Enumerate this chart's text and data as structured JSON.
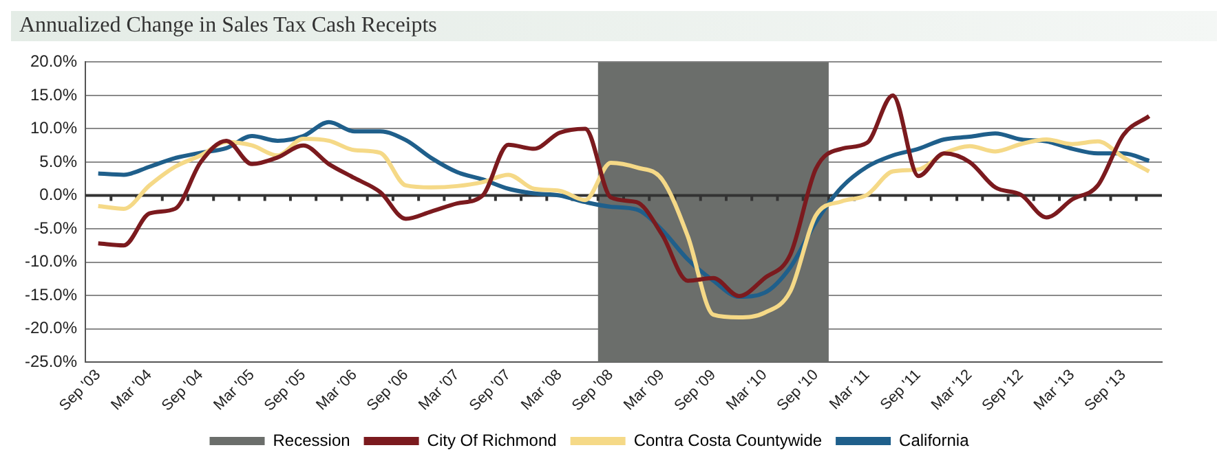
{
  "chart_data": {
    "type": "line",
    "title": "Annualized Change in Sales Tax Cash Receipts",
    "categories": [
      "Sep '03",
      null,
      "Mar '04",
      null,
      "Sep '04",
      null,
      "Mar '05",
      null,
      "Sep '05",
      null,
      "Mar '06",
      null,
      "Sep '06",
      null,
      "Mar '07",
      null,
      "Sep '07",
      null,
      "Mar '08",
      null,
      "Sep '08",
      null,
      "Mar '09",
      null,
      "Sep '09",
      null,
      "Mar '10",
      null,
      "Sep '10",
      null,
      "Mar '11",
      null,
      "Sep '11",
      null,
      "Mar '12",
      null,
      "Sep '12",
      null,
      "Mar '13",
      null,
      "Sep '13",
      null
    ],
    "series": [
      {
        "name": "City Of Richmond",
        "color": "#7b1a1e",
        "values": [
          -7.2,
          -7.5,
          -2.7,
          -2.0,
          5.0,
          8.2,
          4.7,
          5.7,
          7.5,
          4.7,
          2.6,
          0.5,
          -3.5,
          -2.4,
          -1.2,
          0.0,
          7.6,
          7.0,
          9.4,
          10.0,
          -0.3,
          -1.0,
          -5.9,
          -12.8,
          -12.4,
          -15.1,
          -12.4,
          -8.9,
          4.0,
          7.0,
          7.9,
          15.0,
          2.9,
          6.3,
          5.0,
          1.2,
          0.1,
          -3.3,
          -0.6,
          1.5,
          9.1,
          11.9
        ]
      },
      {
        "name": "Contra Costa Countywide",
        "color": "#f5d987",
        "values": [
          -1.6,
          -2.0,
          1.5,
          4.3,
          6.0,
          8.0,
          7.5,
          6.0,
          8.5,
          8.2,
          6.8,
          6.4,
          1.5,
          1.2,
          1.4,
          2.0,
          3.1,
          1.0,
          0.7,
          -0.7,
          4.9,
          4.2,
          2.4,
          -6.1,
          -17.9,
          -18.3,
          -17.6,
          -14.4,
          -3.0,
          -0.9,
          0.1,
          3.6,
          3.9,
          6.3,
          7.4,
          6.6,
          7.7,
          8.4,
          7.7,
          8.1,
          5.7,
          3.6
        ]
      },
      {
        "name": "California",
        "color": "#1f5f8b",
        "values": [
          3.3,
          3.1,
          4.3,
          5.6,
          6.4,
          7.1,
          8.9,
          8.2,
          8.9,
          11.0,
          9.6,
          9.6,
          8.3,
          5.6,
          3.5,
          2.4,
          1.0,
          0.3,
          0.0,
          -1.0,
          -1.7,
          -2.1,
          -5.2,
          -9.6,
          -12.8,
          -15.2,
          -14.6,
          -10.8,
          -4.0,
          1.2,
          4.3,
          6.0,
          7.0,
          8.4,
          8.8,
          9.3,
          8.4,
          8.1,
          7.0,
          6.3,
          6.3,
          5.2
        ]
      }
    ],
    "bands": [
      {
        "axis": "x",
        "from": "Sep '08",
        "to": "Sep '10",
        "label": "Recession",
        "color": "#6b6e6b"
      }
    ],
    "ylim": [
      -25,
      20
    ],
    "yticks": [
      {
        "value": -25,
        "label": "-25.0%"
      },
      {
        "value": -20,
        "label": "-20.0%"
      },
      {
        "value": -15,
        "label": "-15.0%"
      },
      {
        "value": -10,
        "label": "-10.0%"
      },
      {
        "value": -5,
        "label": "-5.0%"
      },
      {
        "value": 0,
        "label": "0.0%"
      },
      {
        "value": 5,
        "label": "5.0%"
      },
      {
        "value": 10,
        "label": "10.0%"
      },
      {
        "value": 15,
        "label": "15.0%"
      },
      {
        "value": 20,
        "label": "20.0%"
      }
    ],
    "grid": "y",
    "legend": "bottom",
    "marker": "none",
    "line_style": "solid"
  }
}
